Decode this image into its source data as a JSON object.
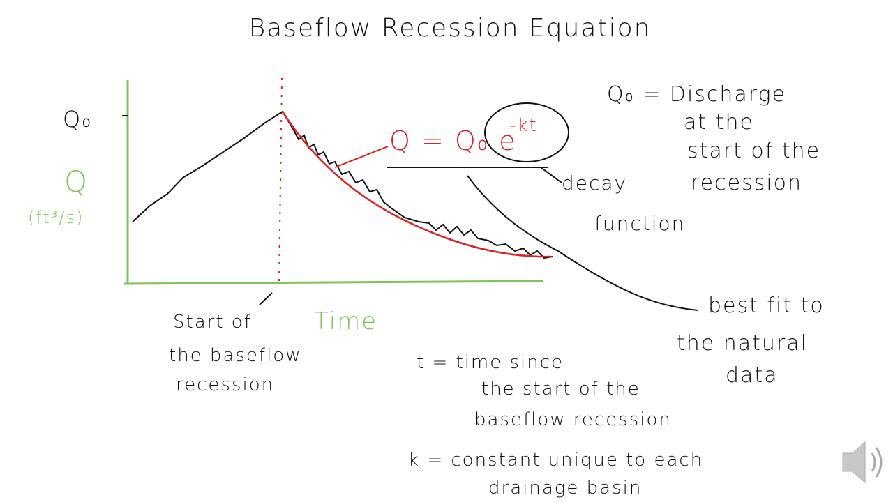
{
  "title": "Baseflow Recession Equation",
  "graph": {
    "y_label": "Q",
    "y_unit": "(ft³/s)",
    "y_marker": "Q₀",
    "x_label": "Time",
    "start_note": [
      "Start of",
      "the baseflow",
      "recession"
    ]
  },
  "equation": {
    "text": "Q = Q₀ e",
    "exponent": "-kt"
  },
  "annotations": {
    "decay": [
      "decay",
      "function"
    ],
    "best_fit": [
      "best fit to",
      "the natural",
      "data"
    ]
  },
  "definitions": [
    [
      "Q₀ = Discharge",
      "at the",
      "start of the",
      "recession"
    ],
    [
      "t = time since",
      "the start of the",
      "baseflow recession"
    ],
    [
      "k = constant unique to each",
      "drainage basin"
    ]
  ]
}
